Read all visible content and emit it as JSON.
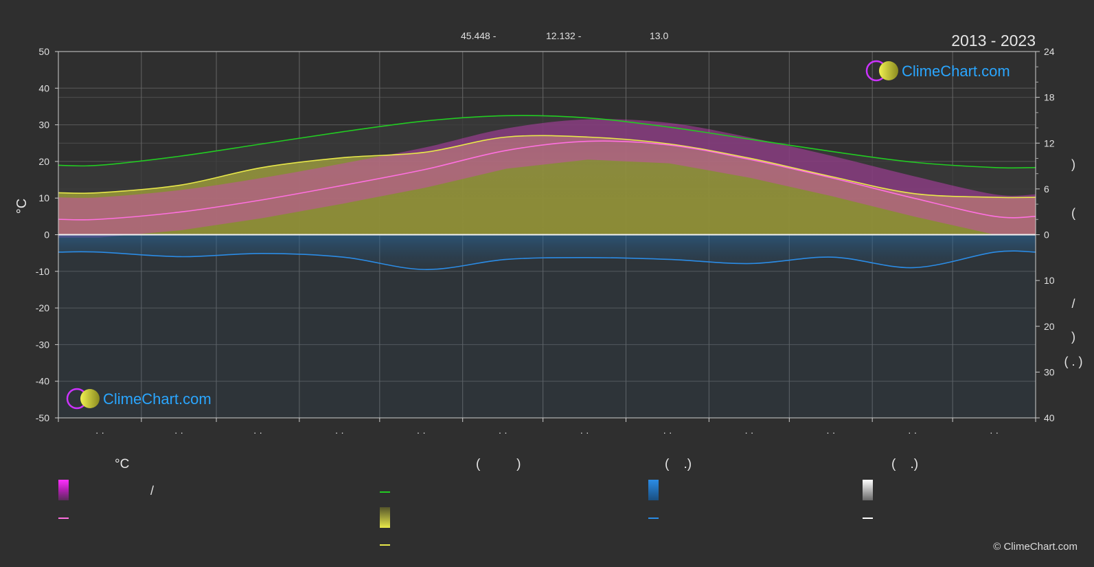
{
  "header": {
    "lat": "45.448 -",
    "lon": "12.132 -",
    "elev": "13.0",
    "years": "2013 - 2023"
  },
  "logo": {
    "text": "ClimeChart.com"
  },
  "copyright": "© ClimeChart.com",
  "colors": {
    "background": "#2f2f2f",
    "daylight": "#22cc22",
    "sunshine": "#e8e84a",
    "temp_mean": "#ff70e0",
    "precip": "#2b8ce6",
    "snow": "#ffffff",
    "logo": "#2aa6ff"
  },
  "legend": {
    "col1_title": "°C",
    "col1_item1": "/",
    "col2_title": "(          )",
    "col3_title": "(    .)",
    "col4_title": "(    .)"
  },
  "right_axis_labels": {
    "upper": ")",
    "upper2": "(",
    "lower1": "/",
    "lower2": ")",
    "lower3": "( . )"
  },
  "chart_data": {
    "type": "area",
    "months": [
      "·  ·",
      "·  ·",
      "·  ·",
      "·  ·",
      "·  ·",
      "·  ·",
      "·  ·",
      "·  ·",
      "·  ·",
      "·  ·",
      "·  ·",
      "·  ·"
    ],
    "y_left": {
      "label": "°C",
      "min": -50,
      "max": 50,
      "ticks": [
        50,
        40,
        30,
        20,
        10,
        0,
        -10,
        -20,
        -30,
        -40,
        -50
      ]
    },
    "y_right_top": {
      "min": 0,
      "max": 24,
      "ticks": [
        24,
        18,
        12,
        6,
        0
      ]
    },
    "y_right_bottom": {
      "min": 0,
      "max": 40,
      "ticks": [
        10,
        20,
        30,
        40
      ]
    },
    "series": [
      {
        "key": "daylight",
        "unit": "hours",
        "values": [
          9.1,
          10.3,
          11.9,
          13.5,
          14.9,
          15.6,
          15.3,
          14.1,
          12.5,
          10.9,
          9.5,
          8.8
        ]
      },
      {
        "key": "sunshine",
        "unit": "hours",
        "values": [
          5.5,
          6.5,
          8.8,
          10.1,
          10.8,
          12.8,
          12.8,
          11.9,
          10.0,
          7.6,
          5.4,
          4.9
        ]
      },
      {
        "key": "temp_mean",
        "unit": "°C",
        "values": [
          4.2,
          6.2,
          9.5,
          13.5,
          17.8,
          23.0,
          25.5,
          24.5,
          20.5,
          15.5,
          10.0,
          5.0
        ]
      },
      {
        "key": "precip",
        "unit": "mm/day",
        "values": [
          3.8,
          4.8,
          4.1,
          4.9,
          7.6,
          5.4,
          5.0,
          5.4,
          6.3,
          4.9,
          7.2,
          3.8
        ]
      }
    ]
  }
}
